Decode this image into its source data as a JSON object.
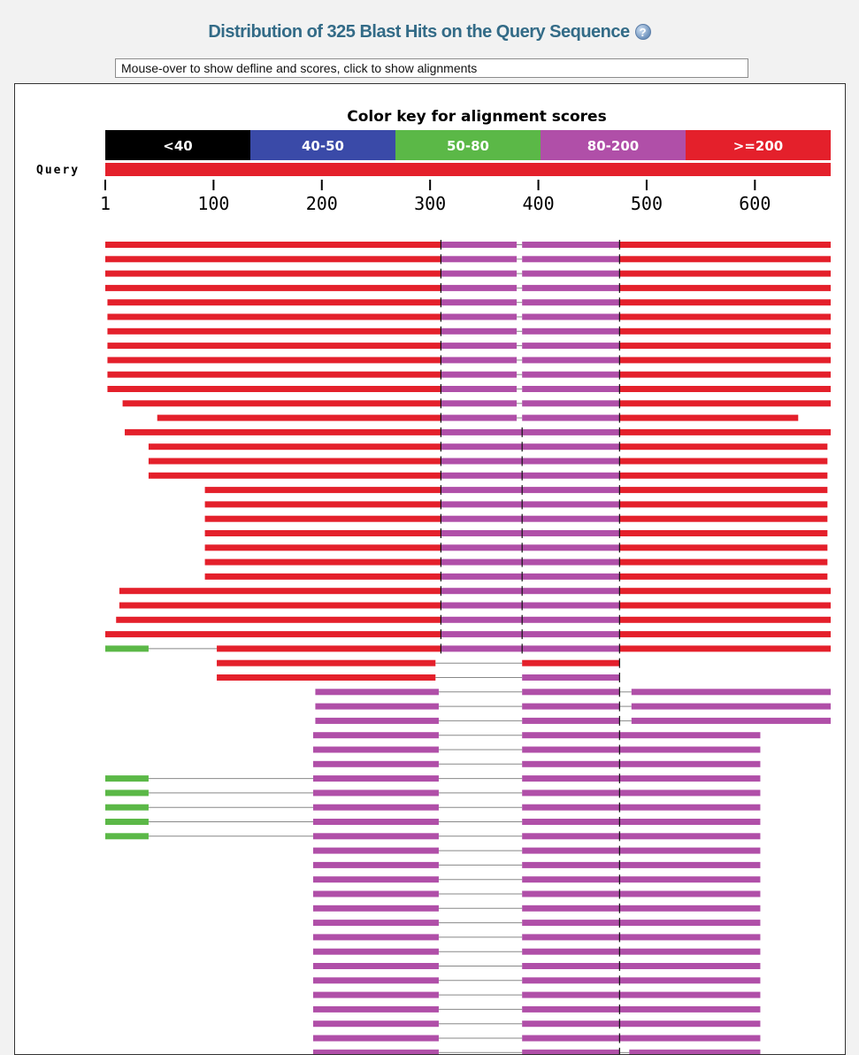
{
  "header": {
    "title": "Distribution of 325 Blast Hits on the Query Sequence",
    "help_icon": "question-mark-icon"
  },
  "status": {
    "text": "Mouse-over to show defline and scores, click to show alignments"
  },
  "chart_data": {
    "type": "alignment-map",
    "key_title": "Color key for alignment scores",
    "color_key": [
      {
        "label": "<40",
        "color": "#000000"
      },
      {
        "label": "40-50",
        "color": "#3a4aa8"
      },
      {
        "label": "50-80",
        "color": "#5bb847"
      },
      {
        "label": "80-200",
        "color": "#b04fa8"
      },
      {
        "label": ">=200",
        "color": "#e4202b"
      }
    ],
    "query_label": "Query",
    "query_length": 670,
    "ticks": [
      "1",
      "100",
      "200",
      "300",
      "400",
      "500",
      "600"
    ],
    "tick_values": [
      1,
      100,
      200,
      300,
      400,
      500,
      600
    ],
    "hits": [
      {
        "segments": [
          [
            0,
            310,
            "r"
          ],
          [
            310,
            380,
            "m"
          ],
          [
            385,
            475,
            "m"
          ],
          [
            475,
            670,
            "r"
          ]
        ]
      },
      {
        "segments": [
          [
            0,
            310,
            "r"
          ],
          [
            310,
            380,
            "m"
          ],
          [
            385,
            475,
            "m"
          ],
          [
            475,
            670,
            "r"
          ]
        ]
      },
      {
        "segments": [
          [
            0,
            310,
            "r"
          ],
          [
            310,
            380,
            "m"
          ],
          [
            385,
            475,
            "m"
          ],
          [
            475,
            670,
            "r"
          ]
        ]
      },
      {
        "segments": [
          [
            0,
            310,
            "r"
          ],
          [
            310,
            380,
            "m"
          ],
          [
            385,
            475,
            "m"
          ],
          [
            475,
            670,
            "r"
          ]
        ]
      },
      {
        "segments": [
          [
            2,
            310,
            "r"
          ],
          [
            310,
            380,
            "m"
          ],
          [
            385,
            475,
            "m"
          ],
          [
            475,
            670,
            "r"
          ]
        ]
      },
      {
        "segments": [
          [
            2,
            310,
            "r"
          ],
          [
            310,
            380,
            "m"
          ],
          [
            385,
            475,
            "m"
          ],
          [
            475,
            670,
            "r"
          ]
        ]
      },
      {
        "segments": [
          [
            2,
            310,
            "r"
          ],
          [
            310,
            380,
            "m"
          ],
          [
            385,
            475,
            "m"
          ],
          [
            475,
            670,
            "r"
          ]
        ]
      },
      {
        "segments": [
          [
            2,
            310,
            "r"
          ],
          [
            310,
            380,
            "m"
          ],
          [
            385,
            475,
            "m"
          ],
          [
            475,
            670,
            "r"
          ]
        ]
      },
      {
        "segments": [
          [
            2,
            310,
            "r"
          ],
          [
            310,
            380,
            "m"
          ],
          [
            385,
            475,
            "m"
          ],
          [
            475,
            670,
            "r"
          ]
        ]
      },
      {
        "segments": [
          [
            2,
            310,
            "r"
          ],
          [
            310,
            380,
            "m"
          ],
          [
            385,
            475,
            "m"
          ],
          [
            475,
            670,
            "r"
          ]
        ]
      },
      {
        "segments": [
          [
            2,
            310,
            "r"
          ],
          [
            310,
            380,
            "m"
          ],
          [
            385,
            475,
            "m"
          ],
          [
            475,
            670,
            "r"
          ]
        ]
      },
      {
        "segments": [
          [
            16,
            310,
            "r"
          ],
          [
            310,
            380,
            "m"
          ],
          [
            385,
            475,
            "m"
          ],
          [
            475,
            670,
            "r"
          ]
        ]
      },
      {
        "segments": [
          [
            48,
            310,
            "r"
          ],
          [
            310,
            380,
            "m"
          ],
          [
            385,
            475,
            "m"
          ],
          [
            475,
            640,
            "r"
          ]
        ]
      },
      {
        "segments": [
          [
            18,
            310,
            "r"
          ],
          [
            310,
            475,
            "m"
          ],
          [
            475,
            670,
            "r"
          ]
        ]
      },
      {
        "segments": [
          [
            40,
            310,
            "r"
          ],
          [
            310,
            475,
            "m"
          ],
          [
            475,
            667,
            "r"
          ]
        ]
      },
      {
        "segments": [
          [
            40,
            310,
            "r"
          ],
          [
            310,
            475,
            "m"
          ],
          [
            475,
            667,
            "r"
          ]
        ]
      },
      {
        "segments": [
          [
            40,
            310,
            "r"
          ],
          [
            310,
            475,
            "m"
          ],
          [
            475,
            667,
            "r"
          ]
        ]
      },
      {
        "segments": [
          [
            92,
            310,
            "r"
          ],
          [
            310,
            475,
            "m"
          ],
          [
            475,
            667,
            "r"
          ]
        ]
      },
      {
        "segments": [
          [
            92,
            310,
            "r"
          ],
          [
            310,
            475,
            "m"
          ],
          [
            475,
            667,
            "r"
          ]
        ]
      },
      {
        "segments": [
          [
            92,
            310,
            "r"
          ],
          [
            310,
            475,
            "m"
          ],
          [
            475,
            667,
            "r"
          ]
        ]
      },
      {
        "segments": [
          [
            92,
            310,
            "r"
          ],
          [
            310,
            475,
            "m"
          ],
          [
            475,
            667,
            "r"
          ]
        ]
      },
      {
        "segments": [
          [
            92,
            310,
            "r"
          ],
          [
            310,
            475,
            "m"
          ],
          [
            475,
            667,
            "r"
          ]
        ]
      },
      {
        "segments": [
          [
            92,
            310,
            "r"
          ],
          [
            310,
            475,
            "m"
          ],
          [
            475,
            667,
            "r"
          ]
        ]
      },
      {
        "segments": [
          [
            92,
            310,
            "r"
          ],
          [
            310,
            475,
            "m"
          ],
          [
            475,
            667,
            "r"
          ]
        ]
      },
      {
        "segments": [
          [
            13,
            310,
            "r"
          ],
          [
            310,
            475,
            "m"
          ],
          [
            475,
            670,
            "r"
          ]
        ]
      },
      {
        "segments": [
          [
            13,
            310,
            "r"
          ],
          [
            310,
            475,
            "m"
          ],
          [
            475,
            670,
            "r"
          ]
        ]
      },
      {
        "segments": [
          [
            10,
            310,
            "r"
          ],
          [
            310,
            475,
            "m"
          ],
          [
            475,
            670,
            "r"
          ]
        ]
      },
      {
        "segments": [
          [
            0,
            310,
            "r"
          ],
          [
            310,
            475,
            "m"
          ],
          [
            475,
            670,
            "r"
          ]
        ]
      },
      {
        "segments": [
          [
            0,
            40,
            "g"
          ],
          [
            103,
            310,
            "r"
          ],
          [
            310,
            475,
            "m"
          ],
          [
            475,
            670,
            "r"
          ]
        ]
      },
      {
        "segments": [
          [
            103,
            305,
            "r"
          ],
          [
            385,
            475,
            "r"
          ]
        ]
      },
      {
        "segments": [
          [
            103,
            305,
            "r"
          ],
          [
            385,
            475,
            "m"
          ]
        ]
      },
      {
        "segments": [
          [
            194,
            308,
            "m"
          ],
          [
            385,
            475,
            "m"
          ],
          [
            486,
            670,
            "m"
          ]
        ]
      },
      {
        "segments": [
          [
            194,
            308,
            "m"
          ],
          [
            385,
            475,
            "m"
          ],
          [
            486,
            670,
            "m"
          ]
        ]
      },
      {
        "segments": [
          [
            194,
            308,
            "m"
          ],
          [
            385,
            475,
            "m"
          ],
          [
            486,
            670,
            "m"
          ]
        ]
      },
      {
        "segments": [
          [
            192,
            308,
            "m"
          ],
          [
            385,
            605,
            "m"
          ]
        ]
      },
      {
        "segments": [
          [
            192,
            308,
            "m"
          ],
          [
            385,
            605,
            "m"
          ]
        ]
      },
      {
        "segments": [
          [
            192,
            308,
            "m"
          ],
          [
            385,
            605,
            "m"
          ]
        ]
      },
      {
        "segments": [
          [
            0,
            40,
            "g"
          ],
          [
            192,
            308,
            "m"
          ],
          [
            385,
            605,
            "m"
          ]
        ]
      },
      {
        "segments": [
          [
            0,
            40,
            "g"
          ],
          [
            192,
            308,
            "m"
          ],
          [
            385,
            605,
            "m"
          ]
        ]
      },
      {
        "segments": [
          [
            0,
            40,
            "g"
          ],
          [
            192,
            308,
            "m"
          ],
          [
            385,
            605,
            "m"
          ]
        ]
      },
      {
        "segments": [
          [
            0,
            40,
            "g"
          ],
          [
            192,
            308,
            "m"
          ],
          [
            385,
            605,
            "m"
          ]
        ]
      },
      {
        "segments": [
          [
            0,
            40,
            "g"
          ],
          [
            192,
            308,
            "m"
          ],
          [
            385,
            605,
            "m"
          ]
        ]
      },
      {
        "segments": [
          [
            192,
            308,
            "m"
          ],
          [
            385,
            605,
            "m"
          ]
        ]
      },
      {
        "segments": [
          [
            192,
            308,
            "m"
          ],
          [
            385,
            605,
            "m"
          ]
        ]
      },
      {
        "segments": [
          [
            192,
            308,
            "m"
          ],
          [
            385,
            605,
            "m"
          ]
        ]
      },
      {
        "segments": [
          [
            192,
            308,
            "m"
          ],
          [
            385,
            605,
            "m"
          ]
        ]
      },
      {
        "segments": [
          [
            192,
            308,
            "m"
          ],
          [
            385,
            605,
            "m"
          ]
        ]
      },
      {
        "segments": [
          [
            192,
            308,
            "m"
          ],
          [
            385,
            605,
            "m"
          ]
        ]
      },
      {
        "segments": [
          [
            192,
            308,
            "m"
          ],
          [
            385,
            605,
            "m"
          ]
        ]
      },
      {
        "segments": [
          [
            192,
            308,
            "m"
          ],
          [
            385,
            605,
            "m"
          ]
        ]
      },
      {
        "segments": [
          [
            192,
            308,
            "m"
          ],
          [
            385,
            605,
            "m"
          ]
        ]
      },
      {
        "segments": [
          [
            192,
            308,
            "m"
          ],
          [
            385,
            605,
            "m"
          ]
        ]
      },
      {
        "segments": [
          [
            192,
            308,
            "m"
          ],
          [
            385,
            605,
            "m"
          ]
        ]
      },
      {
        "segments": [
          [
            192,
            308,
            "m"
          ],
          [
            385,
            605,
            "m"
          ]
        ]
      },
      {
        "segments": [
          [
            192,
            308,
            "m"
          ],
          [
            385,
            605,
            "m"
          ]
        ]
      },
      {
        "segments": [
          [
            192,
            308,
            "m"
          ],
          [
            385,
            605,
            "m"
          ]
        ]
      },
      {
        "segments": [
          [
            192,
            308,
            "m"
          ],
          [
            385,
            475,
            "m"
          ],
          [
            484,
            605,
            "m"
          ]
        ]
      }
    ],
    "segment_colors": {
      "r": "#e4202b",
      "m": "#b04fa8",
      "g": "#5bb847"
    },
    "boundaries": [
      310,
      385,
      475
    ]
  }
}
